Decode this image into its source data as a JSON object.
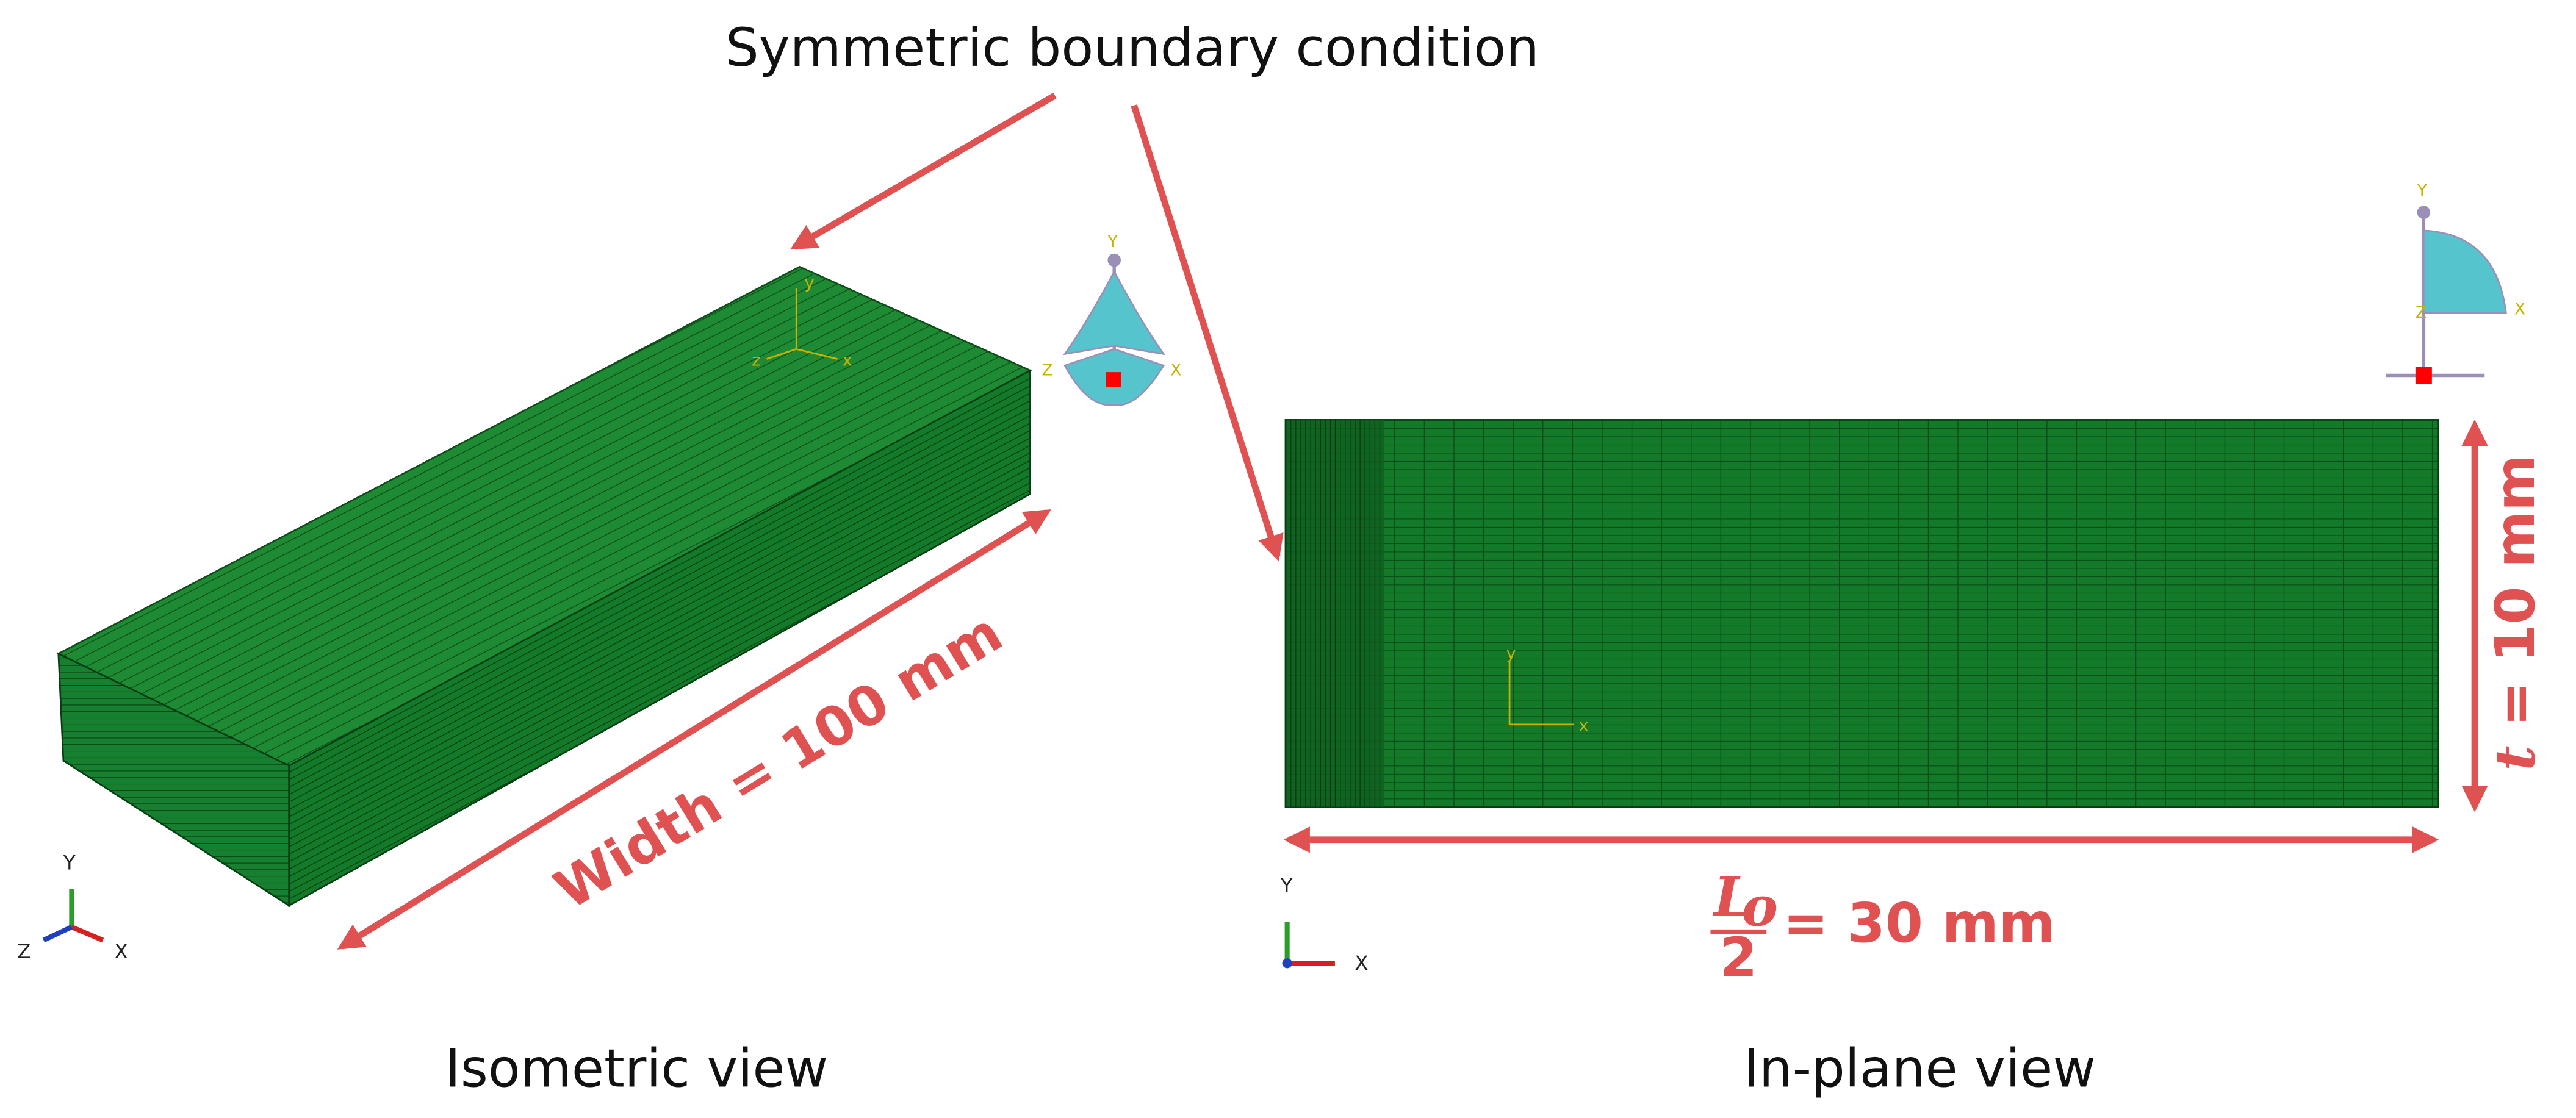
{
  "title": "Symmetric boundary condition",
  "isometric_view": {
    "caption": "Isometric view",
    "dimension": "Width = 100 mm",
    "view_cube": {
      "y": "Y",
      "z": "Z",
      "x": "X"
    },
    "mesh_axes": {
      "y": "y",
      "z": "z",
      "x": "x"
    },
    "triad": {
      "y": "Y",
      "z": "Z",
      "x": "X"
    }
  },
  "in_plane_view": {
    "caption": "In-plane view",
    "thickness": {
      "symbol": "t",
      "text": "= 10 mm"
    },
    "length": {
      "numerator": "L",
      "subscript": "o",
      "denominator": "2",
      "text": "= 30 mm"
    },
    "view_cube": {
      "y": "Y",
      "z": "Z",
      "x": "X"
    },
    "mesh_axes": {
      "y": "y",
      "x": "x"
    },
    "triad": {
      "y": "Y",
      "x": "X"
    }
  }
}
